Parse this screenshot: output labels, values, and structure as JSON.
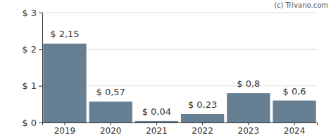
{
  "chart_data": {
    "type": "bar",
    "annotations": [
      "(c) Trivano.com"
    ],
    "categories": [
      "2019",
      "2020",
      "2021",
      "2022",
      "2023",
      "2024"
    ],
    "values": [
      2.15,
      0.57,
      0.04,
      0.23,
      0.8,
      0.6
    ],
    "value_labels": [
      "$ 2,15",
      "$ 0,57",
      "$ 0,04",
      "$ 0,23",
      "$ 0,8",
      "$ 0,6"
    ],
    "data_labels": true,
    "color": "#667f93",
    "ylim": [
      0,
      3
    ],
    "yticks": [
      {
        "value": 0,
        "label": "$ 0"
      },
      {
        "value": 1,
        "label": "$ 1"
      },
      {
        "value": 2,
        "label": "$ 2"
      },
      {
        "value": 3,
        "label": "$ 3"
      }
    ],
    "grid": true
  }
}
